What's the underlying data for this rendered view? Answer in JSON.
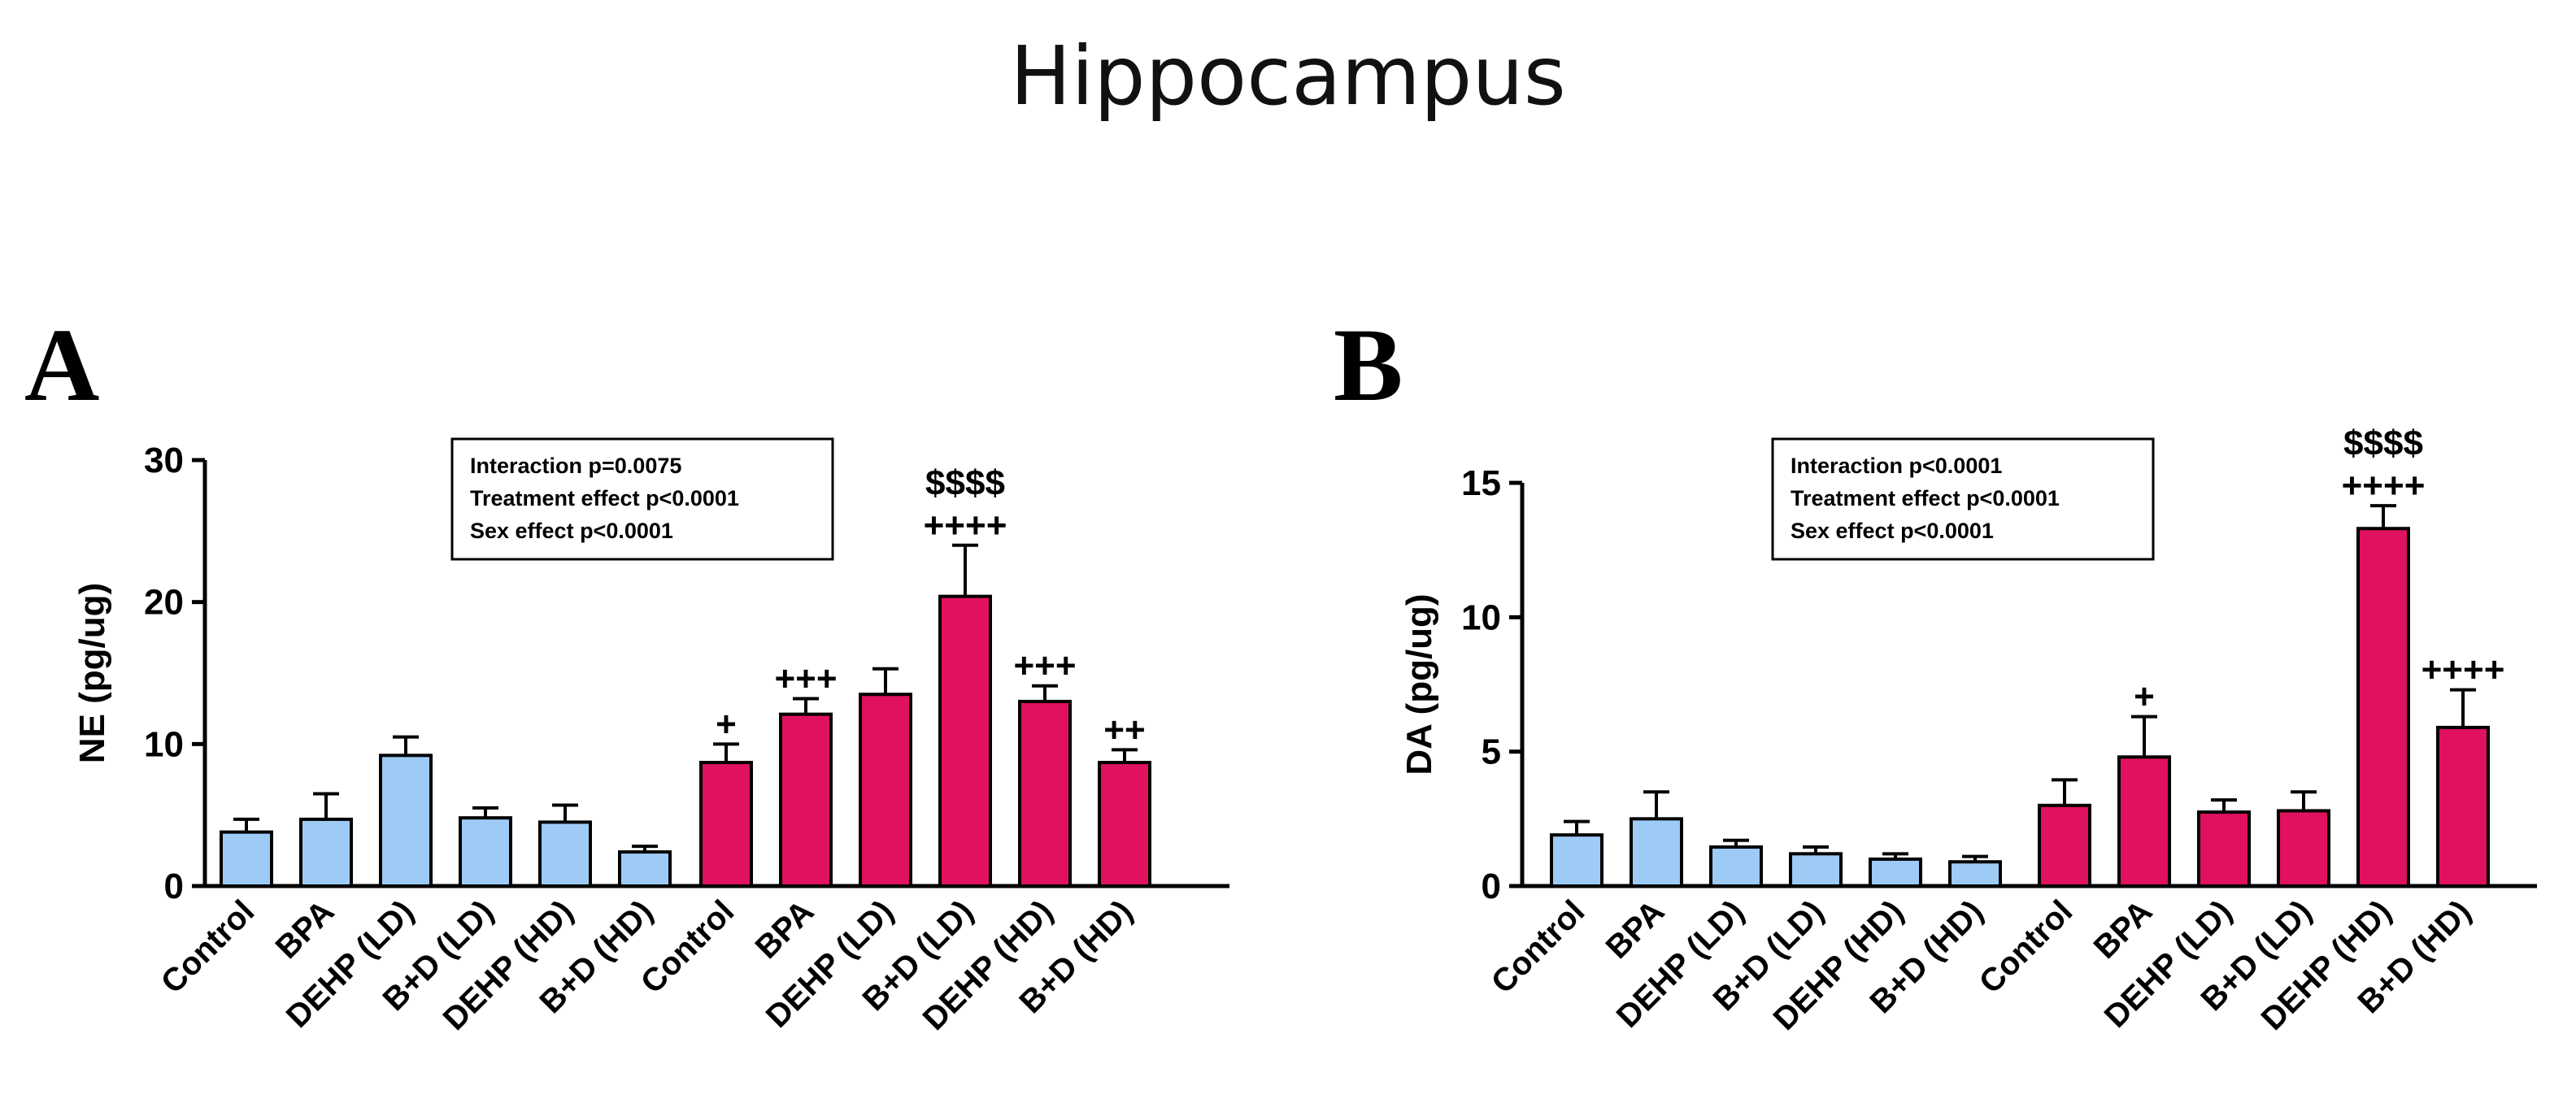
{
  "figure": {
    "title": "Hippocampus"
  },
  "colors": {
    "control_series": "#9dcbf6",
    "treated_series": "#e0115f",
    "axis": "#000000",
    "text": "#000000"
  },
  "chart_data": [
    {
      "panel": "A",
      "type": "bar",
      "title": "",
      "xlabel": "",
      "ylabel": "NE (pg/ug)",
      "ylim": [
        0,
        30
      ],
      "yticks": [
        0,
        10,
        20,
        30
      ],
      "groups": [
        {
          "name": "group-1",
          "color": "#9dcbf6",
          "categories": [
            "Control",
            "BPA",
            "DEHP (LD)",
            "B+D (LD)",
            "DEHP (HD)",
            "B+D (HD)"
          ],
          "values": [
            3.8,
            4.7,
            9.2,
            4.8,
            4.5,
            2.4
          ],
          "errors": [
            0.9,
            1.8,
            1.3,
            0.7,
            1.2,
            0.4
          ],
          "annotations": [
            "",
            "",
            "",
            "",
            "",
            ""
          ]
        },
        {
          "name": "group-2",
          "color": "#e0115f",
          "categories": [
            "Control",
            "BPA",
            "DEHP (LD)",
            "B+D (LD)",
            "DEHP (HD)",
            "B+D (HD)"
          ],
          "values": [
            8.7,
            12.1,
            13.5,
            20.4,
            13.0,
            8.7
          ],
          "errors": [
            1.3,
            1.1,
            1.8,
            3.6,
            1.1,
            0.9
          ],
          "annotations": [
            "+",
            "+++",
            "",
            "++++",
            "+++",
            "++"
          ],
          "annotations_top": [
            "",
            "",
            "",
            "$$$$",
            "",
            ""
          ]
        }
      ],
      "stats_box": [
        "Interaction p=0.0075",
        "Treatment effect p<0.0001",
        "Sex effect p<0.0001"
      ]
    },
    {
      "panel": "B",
      "type": "bar",
      "title": "",
      "xlabel": "",
      "ylabel": "DA (pg/ug)",
      "ylim": [
        0,
        15
      ],
      "yticks": [
        0,
        5,
        10,
        15
      ],
      "groups": [
        {
          "name": "group-1",
          "color": "#9dcbf6",
          "categories": [
            "Control",
            "BPA",
            "DEHP (LD)",
            "B+D (LD)",
            "DEHP (HD)",
            "B+D (HD)"
          ],
          "values": [
            1.9,
            2.5,
            1.45,
            1.2,
            1.0,
            0.9
          ],
          "errors": [
            0.5,
            1.0,
            0.25,
            0.25,
            0.2,
            0.2
          ],
          "annotations": [
            "",
            "",
            "",
            "",
            "",
            ""
          ]
        },
        {
          "name": "group-2",
          "color": "#e0115f",
          "categories": [
            "Control",
            "BPA",
            "DEHP (LD)",
            "B+D (LD)",
            "DEHP (HD)",
            "B+D (HD)"
          ],
          "values": [
            3.0,
            4.8,
            2.75,
            2.8,
            13.3,
            5.9
          ],
          "errors": [
            0.95,
            1.5,
            0.45,
            0.7,
            0.85,
            1.4
          ],
          "annotations": [
            "",
            "+",
            "",
            "",
            "++++",
            "++++"
          ],
          "annotations_top": [
            "",
            "",
            "",
            "",
            "$$$$",
            ""
          ]
        }
      ],
      "stats_box": [
        "Interaction p<0.0001",
        "Treatment effect p<0.0001",
        "Sex effect p<0.0001"
      ]
    }
  ]
}
